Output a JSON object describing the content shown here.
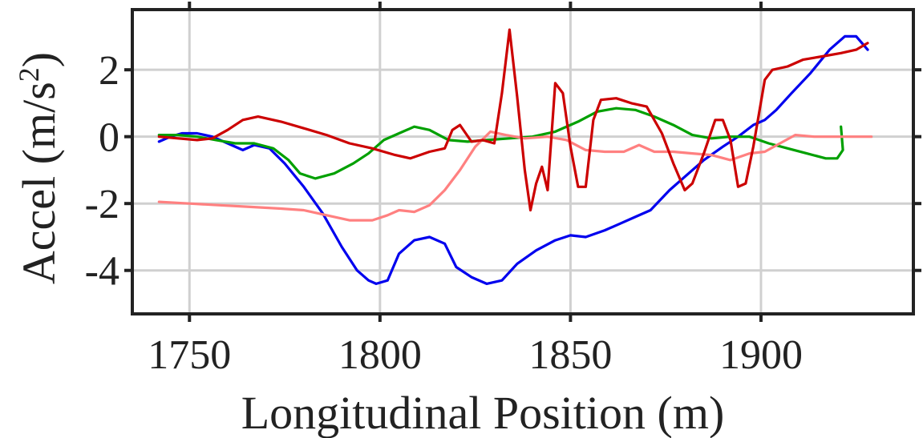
{
  "chart_data": {
    "type": "line",
    "xlabel": "Longitudinal Position (m)",
    "ylabel_main": "Accel (m/s",
    "ylabel_sup": "2",
    "ylabel_close": ")",
    "xlim": [
      1735,
      1940
    ],
    "ylim": [
      -5.3,
      3.8
    ],
    "x_ticks": [
      1750,
      1800,
      1850,
      1900
    ],
    "y_ticks": [
      -4,
      -2,
      0,
      2
    ],
    "x_tick_labels": [
      "1750",
      "1800",
      "1850",
      "1900"
    ],
    "y_tick_labels": [
      "-4",
      "-2",
      "0",
      "2"
    ],
    "grid": true,
    "series": [
      {
        "color": "#0000ee",
        "points": [
          [
            1742,
            -0.15
          ],
          [
            1745,
            0.0
          ],
          [
            1748,
            0.1
          ],
          [
            1752,
            0.1
          ],
          [
            1756,
            0.0
          ],
          [
            1760,
            -0.2
          ],
          [
            1764,
            -0.4
          ],
          [
            1767,
            -0.25
          ],
          [
            1771,
            -0.35
          ],
          [
            1775,
            -0.8
          ],
          [
            1780,
            -1.5
          ],
          [
            1785,
            -2.3
          ],
          [
            1790,
            -3.3
          ],
          [
            1794,
            -4.0
          ],
          [
            1797,
            -4.3
          ],
          [
            1799,
            -4.4
          ],
          [
            1802,
            -4.3
          ],
          [
            1805,
            -3.5
          ],
          [
            1809,
            -3.1
          ],
          [
            1813,
            -3.0
          ],
          [
            1817,
            -3.2
          ],
          [
            1820,
            -3.9
          ],
          [
            1824,
            -4.2
          ],
          [
            1828,
            -4.4
          ],
          [
            1832,
            -4.3
          ],
          [
            1836,
            -3.8
          ],
          [
            1841,
            -3.4
          ],
          [
            1846,
            -3.1
          ],
          [
            1850,
            -2.95
          ],
          [
            1854,
            -3.0
          ],
          [
            1859,
            -2.8
          ],
          [
            1863,
            -2.6
          ],
          [
            1867,
            -2.4
          ],
          [
            1871,
            -2.2
          ],
          [
            1876,
            -1.6
          ],
          [
            1880,
            -1.2
          ],
          [
            1885,
            -0.7
          ],
          [
            1890,
            -0.3
          ],
          [
            1894,
            0.0
          ],
          [
            1898,
            0.35
          ],
          [
            1901,
            0.5
          ],
          [
            1904,
            0.8
          ],
          [
            1908,
            1.3
          ],
          [
            1913,
            1.9
          ],
          [
            1918,
            2.6
          ],
          [
            1922,
            3.0
          ],
          [
            1925,
            3.0
          ],
          [
            1928,
            2.6
          ]
        ]
      },
      {
        "color": "#00a000",
        "points": [
          [
            1742,
            0.05
          ],
          [
            1747,
            0.05
          ],
          [
            1752,
            0.0
          ],
          [
            1757,
            -0.1
          ],
          [
            1762,
            -0.2
          ],
          [
            1767,
            -0.2
          ],
          [
            1772,
            -0.35
          ],
          [
            1776,
            -0.7
          ],
          [
            1779,
            -1.1
          ],
          [
            1783,
            -1.25
          ],
          [
            1788,
            -1.1
          ],
          [
            1793,
            -0.8
          ],
          [
            1797,
            -0.5
          ],
          [
            1801,
            -0.1
          ],
          [
            1805,
            0.1
          ],
          [
            1809,
            0.3
          ],
          [
            1813,
            0.2
          ],
          [
            1818,
            -0.1
          ],
          [
            1823,
            -0.15
          ],
          [
            1828,
            -0.1
          ],
          [
            1834,
            -0.05
          ],
          [
            1840,
            0.0
          ],
          [
            1846,
            0.15
          ],
          [
            1852,
            0.45
          ],
          [
            1857,
            0.75
          ],
          [
            1862,
            0.85
          ],
          [
            1867,
            0.8
          ],
          [
            1872,
            0.6
          ],
          [
            1877,
            0.35
          ],
          [
            1882,
            0.05
          ],
          [
            1887,
            -0.05
          ],
          [
            1892,
            0.0
          ],
          [
            1897,
            0.0
          ],
          [
            1902,
            -0.2
          ],
          [
            1907,
            -0.35
          ],
          [
            1912,
            -0.5
          ],
          [
            1917,
            -0.65
          ],
          [
            1920,
            -0.65
          ],
          [
            1921.5,
            -0.4
          ],
          [
            1921,
            0.3
          ]
        ]
      },
      {
        "color": "#ff8080",
        "points": [
          [
            1742,
            -1.95
          ],
          [
            1750,
            -2.0
          ],
          [
            1758,
            -2.05
          ],
          [
            1766,
            -2.1
          ],
          [
            1774,
            -2.15
          ],
          [
            1780,
            -2.2
          ],
          [
            1786,
            -2.35
          ],
          [
            1792,
            -2.5
          ],
          [
            1798,
            -2.5
          ],
          [
            1802,
            -2.35
          ],
          [
            1805,
            -2.2
          ],
          [
            1809,
            -2.25
          ],
          [
            1813,
            -2.05
          ],
          [
            1817,
            -1.6
          ],
          [
            1821,
            -1.0
          ],
          [
            1825,
            -0.3
          ],
          [
            1829,
            0.15
          ],
          [
            1833,
            0.05
          ],
          [
            1838,
            -0.05
          ],
          [
            1844,
            0.0
          ],
          [
            1849,
            -0.1
          ],
          [
            1854,
            -0.4
          ],
          [
            1859,
            -0.45
          ],
          [
            1864,
            -0.45
          ],
          [
            1868,
            -0.25
          ],
          [
            1872,
            -0.45
          ],
          [
            1877,
            -0.45
          ],
          [
            1882,
            -0.5
          ],
          [
            1887,
            -0.55
          ],
          [
            1892,
            -0.7
          ],
          [
            1897,
            -0.5
          ],
          [
            1901,
            -0.45
          ],
          [
            1905,
            -0.2
          ],
          [
            1909,
            0.05
          ],
          [
            1914,
            0.0
          ],
          [
            1920,
            0.0
          ],
          [
            1929,
            0.0
          ]
        ]
      },
      {
        "color": "#cc0000",
        "points": [
          [
            1742,
            0.0
          ],
          [
            1747,
            -0.05
          ],
          [
            1752,
            -0.1
          ],
          [
            1756,
            -0.05
          ],
          [
            1760,
            0.2
          ],
          [
            1764,
            0.5
          ],
          [
            1768,
            0.6
          ],
          [
            1774,
            0.45
          ],
          [
            1780,
            0.25
          ],
          [
            1786,
            0.05
          ],
          [
            1792,
            -0.2
          ],
          [
            1798,
            -0.35
          ],
          [
            1804,
            -0.55
          ],
          [
            1808,
            -0.65
          ],
          [
            1813,
            -0.45
          ],
          [
            1817,
            -0.35
          ],
          [
            1819,
            0.2
          ],
          [
            1821,
            0.35
          ],
          [
            1824,
            -0.15
          ],
          [
            1827,
            -0.1
          ],
          [
            1830,
            -0.2
          ],
          [
            1832,
            1.3
          ],
          [
            1834,
            3.2
          ],
          [
            1836,
            1.2
          ],
          [
            1838,
            -1.0
          ],
          [
            1839.5,
            -2.2
          ],
          [
            1841,
            -1.4
          ],
          [
            1842.5,
            -0.9
          ],
          [
            1844,
            -1.6
          ],
          [
            1846,
            1.6
          ],
          [
            1848,
            1.3
          ],
          [
            1850,
            -0.3
          ],
          [
            1852,
            -1.5
          ],
          [
            1854,
            -1.5
          ],
          [
            1856,
            0.5
          ],
          [
            1858,
            1.1
          ],
          [
            1862,
            1.15
          ],
          [
            1866,
            1.0
          ],
          [
            1870,
            0.9
          ],
          [
            1874,
            0.1
          ],
          [
            1877,
            -0.8
          ],
          [
            1880,
            -1.6
          ],
          [
            1882,
            -1.4
          ],
          [
            1885,
            -0.5
          ],
          [
            1888,
            0.5
          ],
          [
            1890,
            0.5
          ],
          [
            1892,
            -0.1
          ],
          [
            1894,
            -1.5
          ],
          [
            1896,
            -1.4
          ],
          [
            1898,
            -0.3
          ],
          [
            1901,
            1.7
          ],
          [
            1903,
            2.0
          ],
          [
            1907,
            2.1
          ],
          [
            1911,
            2.3
          ],
          [
            1916,
            2.4
          ],
          [
            1921,
            2.5
          ],
          [
            1925,
            2.6
          ],
          [
            1928,
            2.8
          ]
        ]
      }
    ]
  }
}
